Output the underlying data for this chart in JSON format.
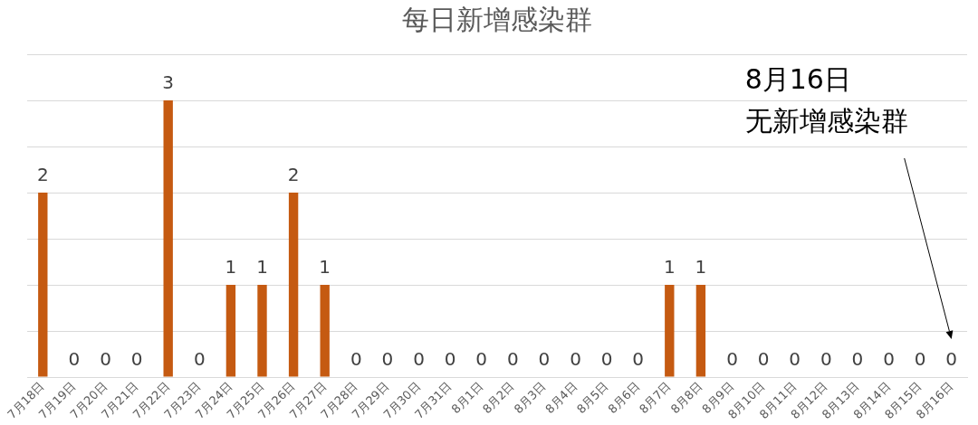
{
  "chart_data": {
    "type": "bar",
    "title": "每日新增感染群",
    "categories": [
      "7月18日",
      "7月19日",
      "7月20日",
      "7月21日",
      "7月22日",
      "7月23日",
      "7月24日",
      "7月25日",
      "7月26日",
      "7月27日",
      "7月28日",
      "7月29日",
      "7月30日",
      "7月31日",
      "8月1日",
      "8月2日",
      "8月3日",
      "8月4日",
      "8月5日",
      "8月6日",
      "8月7日",
      "8月8日",
      "8月9日",
      "8月10日",
      "8月11日",
      "8月12日",
      "8月13日",
      "8月14日",
      "8月15日",
      "8月16日"
    ],
    "values": [
      2,
      0,
      0,
      0,
      3,
      0,
      1,
      1,
      2,
      1,
      0,
      0,
      0,
      0,
      0,
      0,
      0,
      0,
      0,
      0,
      1,
      1,
      0,
      0,
      0,
      0,
      0,
      0,
      0,
      0
    ],
    "color": "#c55a11",
    "ylim": [
      0,
      3.5
    ],
    "yticks": [
      {
        "value": 0,
        "label": null
      },
      {
        "value": 0.5,
        "label": null
      },
      {
        "value": 1,
        "label": null
      },
      {
        "value": 1.5,
        "label": null
      },
      {
        "value": 2,
        "label": null
      },
      {
        "value": 2.5,
        "label": null
      },
      {
        "value": 3,
        "label": null
      },
      {
        "value": 3.5,
        "label": null
      }
    ],
    "tick_labels": "x",
    "grid": "y",
    "legend": false,
    "data_labels": true,
    "annotations": [
      "8月16日",
      "无新增感染群"
    ]
  }
}
